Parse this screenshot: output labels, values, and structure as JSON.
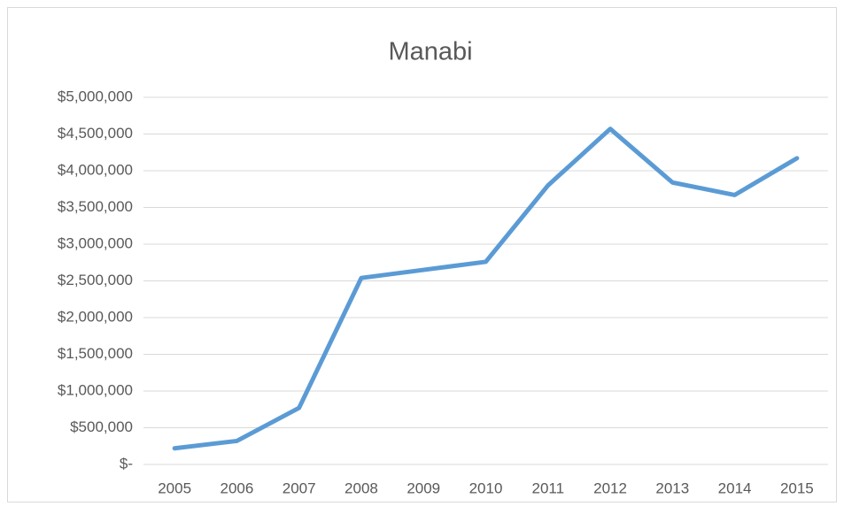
{
  "chart_data": {
    "type": "line",
    "title": "Manabi",
    "categories": [
      "2005",
      "2006",
      "2007",
      "2008",
      "2009",
      "2010",
      "2011",
      "2012",
      "2013",
      "2014",
      "2015"
    ],
    "series": [
      {
        "color": "#5b9bd5",
        "values": [
          220000,
          320000,
          770000,
          2540000,
          2650000,
          2760000,
          3800000,
          4570000,
          3840000,
          3670000,
          4170000
        ]
      }
    ],
    "ylim": [
      0,
      5000000
    ],
    "yticks": [
      {
        "value": 0,
        "label": "$-"
      },
      {
        "value": 500000,
        "label": "$500,000"
      },
      {
        "value": 1000000,
        "label": "$1,000,000"
      },
      {
        "value": 1500000,
        "label": "$1,500,000"
      },
      {
        "value": 2000000,
        "label": "$2,000,000"
      },
      {
        "value": 2500000,
        "label": "$2,500,000"
      },
      {
        "value": 3000000,
        "label": "$3,000,000"
      },
      {
        "value": 3500000,
        "label": "$3,500,000"
      },
      {
        "value": 4000000,
        "label": "$4,000,000"
      },
      {
        "value": 4500000,
        "label": "$4,500,000"
      },
      {
        "value": 5000000,
        "label": "$5,000,000"
      }
    ],
    "grid": true
  }
}
